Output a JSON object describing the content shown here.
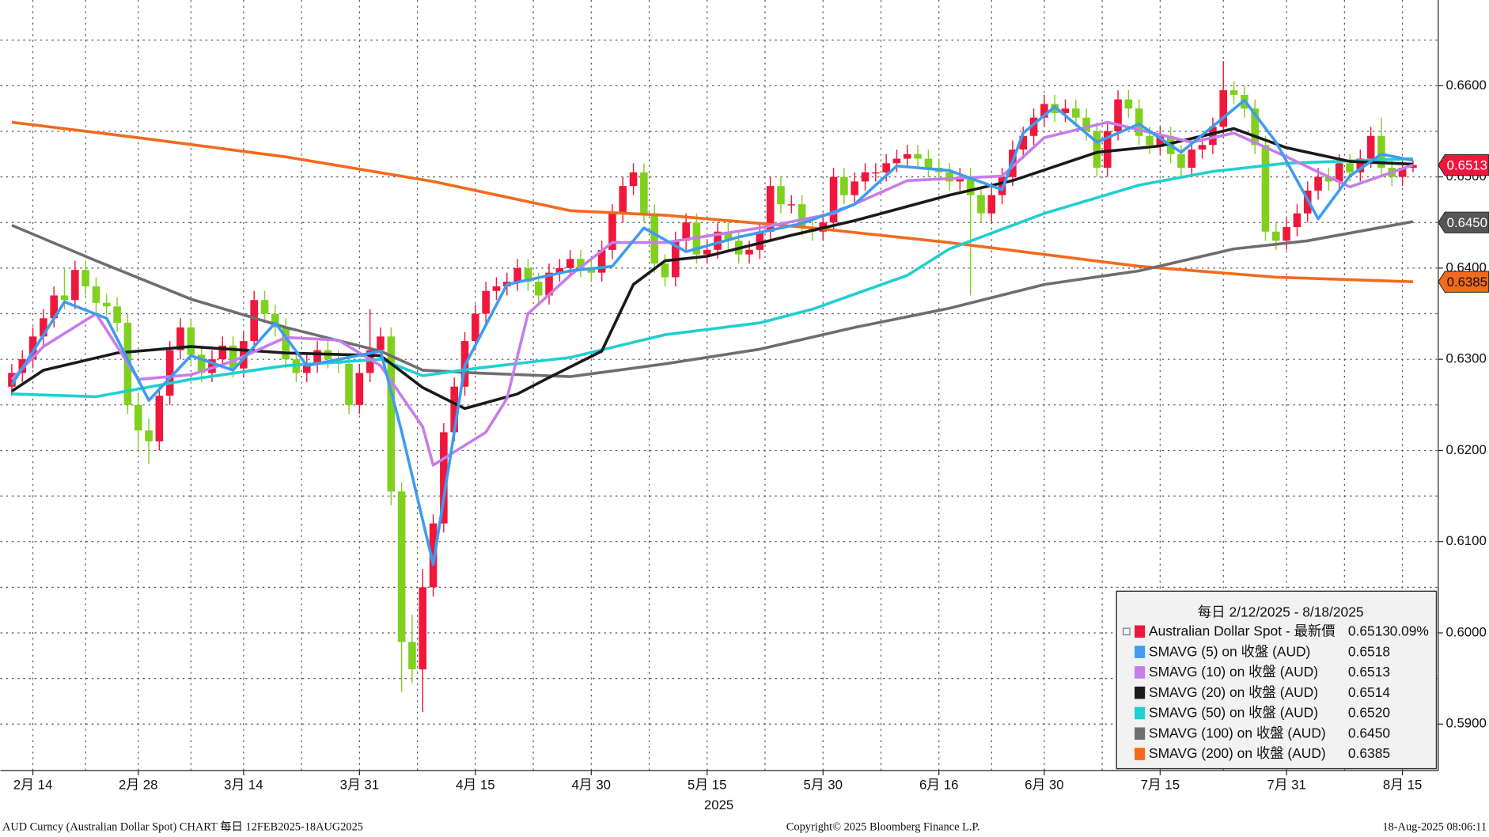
{
  "chart_data": {
    "type": "candlestick",
    "x": [
      0,
      1,
      2,
      3,
      4,
      5,
      6,
      7,
      8,
      9,
      10,
      11,
      12,
      13,
      14,
      15,
      16,
      17,
      18,
      19,
      20,
      21,
      22,
      23,
      24,
      25,
      26,
      27,
      28,
      29,
      30,
      31,
      32,
      33,
      34,
      35,
      36,
      37,
      38,
      39,
      40,
      41,
      42,
      43,
      44,
      45,
      46,
      47,
      48,
      49,
      50,
      51,
      52,
      53,
      54,
      55,
      56,
      57,
      58,
      59,
      60,
      61,
      62,
      63,
      64,
      65,
      66,
      67,
      68,
      69,
      70,
      71,
      72,
      73,
      74,
      75,
      76,
      77,
      78,
      79,
      80,
      81,
      82,
      83,
      84,
      85,
      86,
      87,
      88,
      89,
      90,
      91,
      92,
      93,
      94,
      95,
      96,
      97,
      98,
      99,
      100,
      101,
      102,
      103,
      104,
      105,
      106,
      107,
      108,
      109,
      110,
      111,
      112,
      113,
      114,
      115,
      116,
      117,
      118,
      119,
      120,
      121,
      122,
      123,
      124,
      125,
      126,
      127,
      128,
      129,
      130,
      131,
      132,
      133
    ],
    "open": [
      0.627,
      0.6285,
      0.63,
      0.6325,
      0.6345,
      0.637,
      0.6365,
      0.6398,
      0.638,
      0.6362,
      0.6358,
      0.634,
      0.625,
      0.6222,
      0.621,
      0.626,
      0.631,
      0.6335,
      0.6305,
      0.6285,
      0.63,
      0.6315,
      0.629,
      0.632,
      0.6365,
      0.635,
      0.6335,
      0.63,
      0.6285,
      0.6295,
      0.631,
      0.63,
      0.6295,
      0.625,
      0.6285,
      0.631,
      0.6325,
      0.6155,
      0.599,
      0.596,
      0.605,
      0.612,
      0.622,
      0.627,
      0.632,
      0.635,
      0.6375,
      0.638,
      0.6385,
      0.64,
      0.6385,
      0.637,
      0.6395,
      0.64,
      0.641,
      0.64,
      0.6395,
      0.642,
      0.646,
      0.649,
      0.6505,
      0.646,
      0.6405,
      0.639,
      0.643,
      0.645,
      0.6415,
      0.642,
      0.644,
      0.643,
      0.6415,
      0.642,
      0.644,
      0.649,
      0.647,
      0.647,
      0.6445,
      0.644,
      0.645,
      0.65,
      0.648,
      0.6495,
      0.6505,
      0.6505,
      0.6515,
      0.652,
      0.6525,
      0.652,
      0.651,
      0.6505,
      0.6495,
      0.65,
      0.648,
      0.646,
      0.648,
      0.65,
      0.653,
      0.6545,
      0.6565,
      0.658,
      0.657,
      0.6575,
      0.6565,
      0.655,
      0.651,
      0.655,
      0.6585,
      0.6575,
      0.6545,
      0.6535,
      0.6545,
      0.6525,
      0.651,
      0.653,
      0.6535,
      0.6555,
      0.6595,
      0.659,
      0.6575,
      0.6535,
      0.644,
      0.643,
      0.6445,
      0.646,
      0.6485,
      0.65,
      0.6495,
      0.6515,
      0.6505,
      0.652,
      0.6545,
      0.651,
      0.65,
      0.651
    ],
    "high": [
      0.6295,
      0.631,
      0.6335,
      0.6355,
      0.638,
      0.64,
      0.6408,
      0.6408,
      0.639,
      0.6372,
      0.6368,
      0.635,
      0.6262,
      0.6235,
      0.627,
      0.632,
      0.6345,
      0.6345,
      0.6315,
      0.631,
      0.6325,
      0.6325,
      0.633,
      0.6375,
      0.6375,
      0.636,
      0.6345,
      0.631,
      0.6305,
      0.632,
      0.632,
      0.631,
      0.6305,
      0.6295,
      0.6355,
      0.6335,
      0.6335,
      0.6165,
      0.602,
      0.607,
      0.613,
      0.623,
      0.628,
      0.633,
      0.636,
      0.6385,
      0.639,
      0.6395,
      0.641,
      0.641,
      0.6395,
      0.6405,
      0.641,
      0.642,
      0.642,
      0.641,
      0.643,
      0.647,
      0.65,
      0.6515,
      0.6515,
      0.647,
      0.6415,
      0.644,
      0.646,
      0.646,
      0.643,
      0.645,
      0.645,
      0.644,
      0.643,
      0.645,
      0.65,
      0.65,
      0.648,
      0.648,
      0.6455,
      0.646,
      0.651,
      0.651,
      0.6505,
      0.6515,
      0.6515,
      0.6525,
      0.653,
      0.6535,
      0.6535,
      0.653,
      0.652,
      0.6515,
      0.651,
      0.651,
      0.649,
      0.649,
      0.651,
      0.654,
      0.6555,
      0.6575,
      0.659,
      0.659,
      0.6585,
      0.6585,
      0.6575,
      0.656,
      0.656,
      0.6595,
      0.6595,
      0.6585,
      0.6555,
      0.6555,
      0.6555,
      0.6535,
      0.654,
      0.6545,
      0.6565,
      0.6627,
      0.6605,
      0.66,
      0.6585,
      0.6545,
      0.645,
      0.6455,
      0.647,
      0.6495,
      0.651,
      0.651,
      0.6525,
      0.6525,
      0.653,
      0.6555,
      0.6565,
      0.652,
      0.652,
      0.6518
    ],
    "low": [
      0.626,
      0.6275,
      0.629,
      0.6315,
      0.6335,
      0.6355,
      0.6355,
      0.637,
      0.6352,
      0.6348,
      0.633,
      0.624,
      0.62,
      0.6185,
      0.62,
      0.625,
      0.63,
      0.6295,
      0.6275,
      0.6275,
      0.629,
      0.628,
      0.628,
      0.631,
      0.634,
      0.6325,
      0.629,
      0.6275,
      0.6275,
      0.6285,
      0.629,
      0.6285,
      0.624,
      0.624,
      0.6275,
      0.63,
      0.614,
      0.5935,
      0.5945,
      0.5913,
      0.604,
      0.611,
      0.621,
      0.626,
      0.631,
      0.634,
      0.6365,
      0.637,
      0.6375,
      0.6375,
      0.636,
      0.636,
      0.6385,
      0.639,
      0.639,
      0.6385,
      0.6385,
      0.641,
      0.645,
      0.648,
      0.645,
      0.6395,
      0.638,
      0.638,
      0.642,
      0.6405,
      0.6405,
      0.641,
      0.642,
      0.6405,
      0.6405,
      0.641,
      0.643,
      0.646,
      0.646,
      0.6435,
      0.643,
      0.643,
      0.644,
      0.647,
      0.647,
      0.6485,
      0.6495,
      0.6495,
      0.6505,
      0.651,
      0.651,
      0.65,
      0.6495,
      0.6485,
      0.6485,
      0.637,
      0.645,
      0.645,
      0.647,
      0.649,
      0.652,
      0.6535,
      0.6555,
      0.656,
      0.656,
      0.6555,
      0.654,
      0.65,
      0.65,
      0.654,
      0.6565,
      0.6535,
      0.6525,
      0.6525,
      0.6515,
      0.65,
      0.65,
      0.652,
      0.6525,
      0.6545,
      0.658,
      0.6565,
      0.6525,
      0.643,
      0.642,
      0.642,
      0.6435,
      0.645,
      0.6475,
      0.6485,
      0.6485,
      0.6495,
      0.6495,
      0.651,
      0.65,
      0.649,
      0.649,
      0.6505
    ],
    "close": [
      0.6285,
      0.63,
      0.6325,
      0.6345,
      0.637,
      0.6365,
      0.6398,
      0.638,
      0.6362,
      0.6358,
      0.634,
      0.625,
      0.6222,
      0.621,
      0.626,
      0.631,
      0.6335,
      0.6305,
      0.6285,
      0.63,
      0.6315,
      0.629,
      0.632,
      0.6365,
      0.635,
      0.6335,
      0.63,
      0.6285,
      0.6295,
      0.631,
      0.63,
      0.6295,
      0.625,
      0.6285,
      0.631,
      0.6325,
      0.6155,
      0.599,
      0.596,
      0.605,
      0.612,
      0.622,
      0.627,
      0.632,
      0.635,
      0.6375,
      0.638,
      0.6385,
      0.64,
      0.6385,
      0.637,
      0.6395,
      0.64,
      0.641,
      0.64,
      0.6395,
      0.642,
      0.646,
      0.649,
      0.6505,
      0.646,
      0.6405,
      0.639,
      0.643,
      0.645,
      0.6415,
      0.642,
      0.644,
      0.643,
      0.6415,
      0.642,
      0.644,
      0.649,
      0.647,
      0.647,
      0.6445,
      0.644,
      0.645,
      0.65,
      0.648,
      0.6495,
      0.6505,
      0.6505,
      0.6515,
      0.652,
      0.6525,
      0.652,
      0.651,
      0.6505,
      0.6495,
      0.65,
      0.648,
      0.646,
      0.648,
      0.65,
      0.653,
      0.6545,
      0.6565,
      0.658,
      0.657,
      0.6575,
      0.6565,
      0.655,
      0.651,
      0.655,
      0.6585,
      0.6575,
      0.6545,
      0.6535,
      0.6545,
      0.6525,
      0.651,
      0.653,
      0.6535,
      0.6555,
      0.6595,
      0.659,
      0.6575,
      0.6535,
      0.644,
      0.643,
      0.6445,
      0.646,
      0.6485,
      0.65,
      0.6495,
      0.6515,
      0.6505,
      0.652,
      0.6545,
      0.651,
      0.65,
      0.651,
      0.6513
    ],
    "up_color": "#f0173c",
    "down_color": "#80d01e",
    "main_legend": {
      "name": "Australian Dollar Spot - 最新價",
      "value": "0.6513",
      "change": "0.09%",
      "color": "#f0173c"
    },
    "legend_title": "每日 2/12/2025 - 8/18/2025",
    "series": [
      {
        "name": "SMAVG (5)  on 收盤 (AUD)",
        "legend_value": "0.6518",
        "color": "#3d9cf0",
        "x": [
          0,
          5,
          9,
          13,
          17,
          21,
          25,
          28,
          35,
          37,
          40,
          43,
          47,
          53,
          57,
          60,
          64,
          69,
          75,
          80,
          84,
          89,
          94,
          96,
          99,
          103,
          107,
          111,
          117,
          120,
          124,
          127,
          130,
          133
        ],
        "values": [
          0.6272,
          0.6363,
          0.6345,
          0.6255,
          0.6304,
          0.6288,
          0.634,
          0.6293,
          0.6309,
          0.6221,
          0.6075,
          0.6293,
          0.6382,
          0.6397,
          0.6402,
          0.6444,
          0.6418,
          0.6434,
          0.6449,
          0.647,
          0.6512,
          0.6507,
          0.6486,
          0.6548,
          0.6577,
          0.6538,
          0.6558,
          0.6527,
          0.6584,
          0.6538,
          0.6454,
          0.6501,
          0.6525,
          0.6518
        ]
      },
      {
        "name": "SMAVG (10)  on 收盤 (AUD)",
        "legend_value": "0.6513",
        "color": "#c77dea",
        "x": [
          0,
          3,
          8,
          12,
          17,
          21,
          26,
          31,
          35,
          39,
          40,
          45,
          47,
          49,
          53,
          57,
          62,
          71,
          78,
          85,
          94,
          98,
          104,
          112,
          116,
          121,
          127,
          133
        ],
        "values": [
          0.6278,
          0.6314,
          0.635,
          0.6278,
          0.6283,
          0.6298,
          0.6324,
          0.6321,
          0.6293,
          0.6226,
          0.6184,
          0.622,
          0.6257,
          0.635,
          0.6392,
          0.6428,
          0.6428,
          0.6444,
          0.646,
          0.6496,
          0.6501,
          0.6543,
          0.656,
          0.6538,
          0.6548,
          0.6522,
          0.6489,
          0.6513
        ]
      },
      {
        "name": "SMAVG (20)  on 收盤 (AUD)",
        "legend_value": "0.6514",
        "color": "#1a1a1a",
        "x": [
          0,
          3,
          10,
          17,
          26,
          35,
          39,
          43,
          48,
          51,
          56,
          59,
          62,
          66,
          74,
          80,
          89,
          95,
          103,
          109,
          116,
          121,
          127,
          133
        ],
        "values": [
          0.6265,
          0.6288,
          0.6307,
          0.6314,
          0.6307,
          0.6304,
          0.6269,
          0.6246,
          0.6262,
          0.628,
          0.6309,
          0.6382,
          0.6408,
          0.6413,
          0.6436,
          0.6452,
          0.648,
          0.6496,
          0.6527,
          0.6534,
          0.6553,
          0.6532,
          0.6517,
          0.6514
        ]
      },
      {
        "name": "SMAVG (50)  on 收盤 (AUD)",
        "legend_value": "0.6520",
        "color": "#1fcfd2",
        "x": [
          0,
          8,
          17,
          26,
          35,
          39,
          44,
          53,
          62,
          71,
          76,
          85,
          89,
          98,
          107,
          114,
          121,
          133
        ],
        "values": [
          0.6262,
          0.6259,
          0.6278,
          0.6293,
          0.63,
          0.6282,
          0.629,
          0.6302,
          0.6327,
          0.634,
          0.6355,
          0.6392,
          0.6421,
          0.646,
          0.6491,
          0.6506,
          0.6515,
          0.652
        ]
      },
      {
        "name": "SMAVG (100)  on 收盤 (AUD)",
        "legend_value": "0.6450",
        "color": "#6e6e6e",
        "x": [
          0,
          8,
          17,
          26,
          35,
          39,
          44,
          53,
          62,
          71,
          80,
          89,
          98,
          107,
          116,
          123,
          133
        ],
        "values": [
          0.6447,
          0.6408,
          0.6366,
          0.6335,
          0.6309,
          0.6288,
          0.6285,
          0.6281,
          0.6295,
          0.6311,
          0.6335,
          0.6356,
          0.6382,
          0.6397,
          0.6421,
          0.643,
          0.6451
        ]
      },
      {
        "name": "SMAVG (200)  on 收盤 (AUD)",
        "legend_value": "0.6385",
        "color": "#f26a1b",
        "x": [
          0,
          12,
          26,
          40,
          53,
          62,
          76,
          89,
          107,
          120,
          133
        ],
        "values": [
          0.656,
          0.6543,
          0.6522,
          0.6495,
          0.6463,
          0.6458,
          0.6444,
          0.6428,
          0.6402,
          0.639,
          0.6385
        ]
      }
    ],
    "xlim": [
      -1.08,
      135.4
    ],
    "xticks": [
      {
        "value": 2,
        "label": "2月 14"
      },
      {
        "value": 12,
        "label": "2月 28"
      },
      {
        "value": 22,
        "label": "3月 14"
      },
      {
        "value": 33,
        "label": "3月 31"
      },
      {
        "value": 44,
        "label": "4月 15"
      },
      {
        "value": 55,
        "label": "4月 30"
      },
      {
        "value": 66,
        "label": "5月 15"
      },
      {
        "value": 77,
        "label": "5月 30"
      },
      {
        "value": 88,
        "label": "6月 16"
      },
      {
        "value": 98,
        "label": "6月 30"
      },
      {
        "value": 109,
        "label": "7月 15"
      },
      {
        "value": 121,
        "label": "7月 31"
      },
      {
        "value": 132,
        "label": "8月 15"
      }
    ],
    "x_minor_grid": [
      7,
      17,
      27.5,
      38.5,
      49.5,
      60.5,
      71.5,
      82.5,
      93,
      103.5,
      115,
      126.5
    ],
    "x_year_label": "2025",
    "ylim": [
      0.5849,
      0.6694
    ],
    "yticks": [
      {
        "value": 0.59,
        "label": "0.5900"
      },
      {
        "value": 0.6,
        "label": "0.6000"
      },
      {
        "value": 0.61,
        "label": "0.6100"
      },
      {
        "value": 0.62,
        "label": "0.6200"
      },
      {
        "value": 0.63,
        "label": "0.6300"
      },
      {
        "value": 0.64,
        "label": "0.6400"
      },
      {
        "value": 0.65,
        "label": "0.6500"
      },
      {
        "value": 0.66,
        "label": "0.6600"
      }
    ],
    "y_minor_grid": [
      0.595,
      0.605,
      0.615,
      0.625,
      0.635,
      0.645,
      0.655,
      0.665
    ],
    "grid": true,
    "price_tags": [
      {
        "value": 0.6513,
        "label": "0.6513",
        "color": "#f0173c",
        "text_color": "#ffffff"
      },
      {
        "value": 0.645,
        "label": "0.6450",
        "color": "#555555",
        "text_color": "#ffffff"
      },
      {
        "value": 0.6385,
        "label": "0.6385",
        "color": "#f26a1b",
        "text_color": "#111111"
      }
    ],
    "footer": {
      "left": "AUD Curncy (Australian Dollar Spot) CHART  每日 12FEB2025-18AUG2025",
      "center": "Copyright© 2025 Bloomberg Finance L.P.",
      "right": "18-Aug-2025 08:06:11"
    }
  }
}
